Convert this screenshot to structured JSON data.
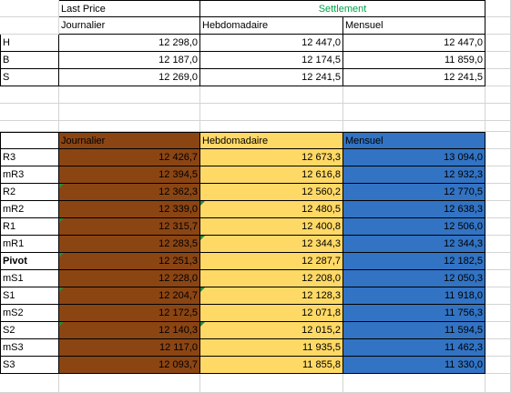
{
  "colors": {
    "brown": "#8B4513",
    "yellow": "#FFD966",
    "blue": "#3273C3",
    "settlement_green": "#00a34a",
    "error_flag": "#2b8a3e"
  },
  "top": {
    "last_price": "Last Price",
    "settlement": "Settlement",
    "headers": [
      "Journalier",
      "Hebdomadaire",
      "Mensuel"
    ],
    "rows": [
      {
        "label": "H",
        "values": [
          "12 298,0",
          "12 447,0",
          "12 447,0"
        ]
      },
      {
        "label": "B",
        "values": [
          "12 187,0",
          "12 174,5",
          "11 859,0"
        ]
      },
      {
        "label": "S",
        "values": [
          "12 269,0",
          "12 241,5",
          "12 241,5"
        ]
      }
    ]
  },
  "pivot": {
    "headers": [
      "Journalier",
      "Hebdomadaire",
      "Mensuel"
    ],
    "rows": [
      {
        "label": "R3",
        "values": [
          "12 426,7",
          "12 673,3",
          "13 094,0"
        ]
      },
      {
        "label": "mR3",
        "values": [
          "12 394,5",
          "12 616,8",
          "12 932,3"
        ]
      },
      {
        "label": "R2",
        "values": [
          "12 362,3",
          "12 560,2",
          "12 770,5"
        ]
      },
      {
        "label": "mR2",
        "values": [
          "12 339,0",
          "12 480,5",
          "12 638,3"
        ]
      },
      {
        "label": "R1",
        "values": [
          "12 315,7",
          "12 400,8",
          "12 506,0"
        ]
      },
      {
        "label": "mR1",
        "values": [
          "12 283,5",
          "12 344,3",
          "12 344,3"
        ]
      },
      {
        "label": "Pivot",
        "values": [
          "12 251,3",
          "12 287,7",
          "12 182,5"
        ]
      },
      {
        "label": "mS1",
        "values": [
          "12 228,0",
          "12 208,0",
          "12 050,3"
        ]
      },
      {
        "label": "S1",
        "values": [
          "12 204,7",
          "12 128,3",
          "11 918,0"
        ]
      },
      {
        "label": "mS2",
        "values": [
          "12 172,5",
          "12 071,8",
          "11 756,3"
        ]
      },
      {
        "label": "S2",
        "values": [
          "12 140,3",
          "12 015,2",
          "11 594,5"
        ]
      },
      {
        "label": "mS3",
        "values": [
          "12 117,0",
          "11 935,5",
          "11 462,3"
        ]
      },
      {
        "label": "S3",
        "values": [
          "12 093,7",
          "11 855,8",
          "11 330,0"
        ]
      }
    ]
  }
}
